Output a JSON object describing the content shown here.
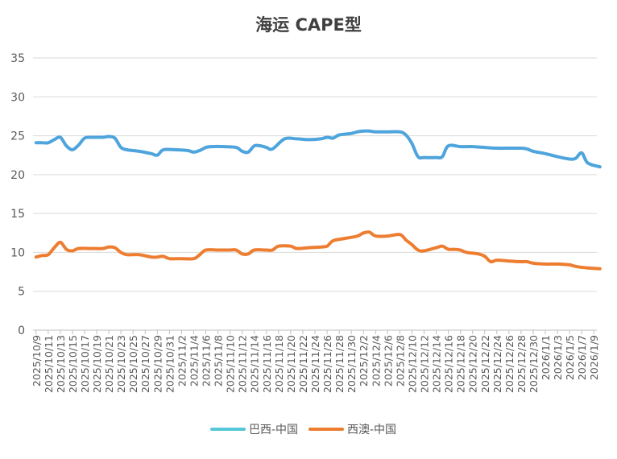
{
  "chart_data": {
    "type": "line",
    "title": "海运 CAPE型",
    "xlabel": "",
    "ylabel": "",
    "ylim": [
      0,
      35
    ],
    "yticks": [
      0,
      5,
      10,
      15,
      20,
      25,
      30,
      35
    ],
    "grid": true,
    "legend_position": "bottom",
    "x_start": "2025-10-09",
    "x_end": "2026-01-10",
    "tick_labels": [
      "2025/10/9",
      "2025/10/11",
      "2025/10/13",
      "2025/10/15",
      "2025/10/17",
      "2025/10/19",
      "2025/10/21",
      "2025/10/23",
      "2025/10/25",
      "2025/10/27",
      "2025/10/29",
      "2025/10/31",
      "2025/11/2",
      "2025/11/4",
      "2025/11/6",
      "2025/11/8",
      "2025/11/10",
      "2025/11/12",
      "2025/11/14",
      "2025/11/16",
      "2025/11/18",
      "2025/11/20",
      "2025/11/22",
      "2025/11/24",
      "2025/11/26",
      "2025/11/28",
      "2025/11/30",
      "2025/12/2",
      "2025/12/4",
      "2025/12/6",
      "2025/12/8",
      "2025/12/10",
      "2025/12/12",
      "2025/12/14",
      "2025/12/16",
      "2025/12/18",
      "2025/12/20",
      "2025/12/22",
      "2025/12/24",
      "2025/12/26",
      "2025/12/28",
      "2025/12/30",
      "2026/1/1",
      "2026/1/3",
      "2026/1/5",
      "2026/1/7",
      "2026/1/9"
    ],
    "series": [
      {
        "name": "巴西-中国",
        "color": "#4ea4dc",
        "legend_swatch": "#55c7d6",
        "points": [
          [
            "2025-10-09",
            24.1
          ],
          [
            "2025-10-10",
            24.1
          ],
          [
            "2025-10-11",
            24.1
          ],
          [
            "2025-10-12",
            24.5
          ],
          [
            "2025-10-13",
            24.8
          ],
          [
            "2025-10-14",
            23.7
          ],
          [
            "2025-10-15",
            23.2
          ],
          [
            "2025-10-16",
            23.8
          ],
          [
            "2025-10-17",
            24.7
          ],
          [
            "2025-10-18",
            24.8
          ],
          [
            "2025-10-20",
            24.8
          ],
          [
            "2025-10-21",
            24.9
          ],
          [
            "2025-10-22",
            24.7
          ],
          [
            "2025-10-23",
            23.5
          ],
          [
            "2025-10-24",
            23.2
          ],
          [
            "2025-10-26",
            23.0
          ],
          [
            "2025-10-28",
            22.7
          ],
          [
            "2025-10-29",
            22.5
          ],
          [
            "2025-10-30",
            23.2
          ],
          [
            "2025-11-01",
            23.2
          ],
          [
            "2025-11-03",
            23.1
          ],
          [
            "2025-11-04",
            22.9
          ],
          [
            "2025-11-05",
            23.1
          ],
          [
            "2025-11-06",
            23.5
          ],
          [
            "2025-11-07",
            23.6
          ],
          [
            "2025-11-09",
            23.6
          ],
          [
            "2025-11-11",
            23.5
          ],
          [
            "2025-11-12",
            23.0
          ],
          [
            "2025-11-13",
            22.9
          ],
          [
            "2025-11-14",
            23.7
          ],
          [
            "2025-11-15",
            23.7
          ],
          [
            "2025-11-16",
            23.5
          ],
          [
            "2025-11-17",
            23.3
          ],
          [
            "2025-11-19",
            24.6
          ],
          [
            "2025-11-21",
            24.6
          ],
          [
            "2025-11-23",
            24.5
          ],
          [
            "2025-11-25",
            24.6
          ],
          [
            "2025-11-26",
            24.8
          ],
          [
            "2025-11-27",
            24.7
          ],
          [
            "2025-11-28",
            25.1
          ],
          [
            "2025-11-30",
            25.3
          ],
          [
            "2025-12-01",
            25.5
          ],
          [
            "2025-12-02",
            25.6
          ],
          [
            "2025-12-03",
            25.6
          ],
          [
            "2025-12-04",
            25.5
          ],
          [
            "2025-12-06",
            25.5
          ],
          [
            "2025-12-08",
            25.5
          ],
          [
            "2025-12-09",
            25.1
          ],
          [
            "2025-12-10",
            24.0
          ],
          [
            "2025-12-11",
            22.3
          ],
          [
            "2025-12-12",
            22.2
          ],
          [
            "2025-12-14",
            22.2
          ],
          [
            "2025-12-15",
            22.3
          ],
          [
            "2025-12-16",
            23.7
          ],
          [
            "2025-12-18",
            23.6
          ],
          [
            "2025-12-20",
            23.6
          ],
          [
            "2025-12-22",
            23.5
          ],
          [
            "2025-12-24",
            23.4
          ],
          [
            "2025-12-26",
            23.4
          ],
          [
            "2025-12-28",
            23.4
          ],
          [
            "2025-12-29",
            23.3
          ],
          [
            "2025-12-30",
            23.0
          ],
          [
            "2026-01-01",
            22.7
          ],
          [
            "2026-01-03",
            22.3
          ],
          [
            "2026-01-05",
            22.0
          ],
          [
            "2026-01-06",
            22.1
          ],
          [
            "2026-01-07",
            22.8
          ],
          [
            "2026-01-08",
            21.5
          ],
          [
            "2026-01-10",
            21.0
          ]
        ]
      },
      {
        "name": "西澳-中国",
        "color": "#ed7d31",
        "legend_swatch": "#ed7d31",
        "points": [
          [
            "2025-10-09",
            9.4
          ],
          [
            "2025-10-10",
            9.6
          ],
          [
            "2025-10-11",
            9.7
          ],
          [
            "2025-10-12",
            10.6
          ],
          [
            "2025-10-13",
            11.3
          ],
          [
            "2025-10-14",
            10.4
          ],
          [
            "2025-10-15",
            10.2
          ],
          [
            "2025-10-16",
            10.5
          ],
          [
            "2025-10-18",
            10.5
          ],
          [
            "2025-10-20",
            10.5
          ],
          [
            "2025-10-21",
            10.7
          ],
          [
            "2025-10-22",
            10.6
          ],
          [
            "2025-10-23",
            10.0
          ],
          [
            "2025-10-24",
            9.7
          ],
          [
            "2025-10-26",
            9.7
          ],
          [
            "2025-10-28",
            9.4
          ],
          [
            "2025-10-29",
            9.4
          ],
          [
            "2025-10-30",
            9.5
          ],
          [
            "2025-10-31",
            9.2
          ],
          [
            "2025-11-02",
            9.2
          ],
          [
            "2025-11-04",
            9.2
          ],
          [
            "2025-11-05",
            9.7
          ],
          [
            "2025-11-06",
            10.3
          ],
          [
            "2025-11-08",
            10.3
          ],
          [
            "2025-11-10",
            10.3
          ],
          [
            "2025-11-11",
            10.3
          ],
          [
            "2025-11-12",
            9.8
          ],
          [
            "2025-11-13",
            9.8
          ],
          [
            "2025-11-14",
            10.3
          ],
          [
            "2025-11-16",
            10.3
          ],
          [
            "2025-11-17",
            10.3
          ],
          [
            "2025-11-18",
            10.8
          ],
          [
            "2025-11-20",
            10.8
          ],
          [
            "2025-11-21",
            10.5
          ],
          [
            "2025-11-23",
            10.6
          ],
          [
            "2025-11-25",
            10.7
          ],
          [
            "2025-11-26",
            10.8
          ],
          [
            "2025-11-27",
            11.5
          ],
          [
            "2025-11-29",
            11.8
          ],
          [
            "2025-12-01",
            12.1
          ],
          [
            "2025-12-02",
            12.5
          ],
          [
            "2025-12-03",
            12.6
          ],
          [
            "2025-12-04",
            12.1
          ],
          [
            "2025-12-06",
            12.1
          ],
          [
            "2025-12-08",
            12.3
          ],
          [
            "2025-12-09",
            11.6
          ],
          [
            "2025-12-10",
            11.0
          ],
          [
            "2025-12-11",
            10.3
          ],
          [
            "2025-12-12",
            10.2
          ],
          [
            "2025-12-14",
            10.6
          ],
          [
            "2025-12-15",
            10.8
          ],
          [
            "2025-12-16",
            10.4
          ],
          [
            "2025-12-17",
            10.4
          ],
          [
            "2025-12-18",
            10.3
          ],
          [
            "2025-12-19",
            10.0
          ],
          [
            "2025-12-21",
            9.8
          ],
          [
            "2025-12-22",
            9.5
          ],
          [
            "2025-12-23",
            8.8
          ],
          [
            "2025-12-24",
            9.0
          ],
          [
            "2025-12-26",
            8.9
          ],
          [
            "2025-12-28",
            8.8
          ],
          [
            "2025-12-29",
            8.8
          ],
          [
            "2025-12-30",
            8.6
          ],
          [
            "2026-01-01",
            8.5
          ],
          [
            "2026-01-03",
            8.5
          ],
          [
            "2026-01-05",
            8.4
          ],
          [
            "2026-01-06",
            8.2
          ],
          [
            "2026-01-08",
            8.0
          ],
          [
            "2026-01-10",
            7.9
          ]
        ]
      }
    ]
  }
}
